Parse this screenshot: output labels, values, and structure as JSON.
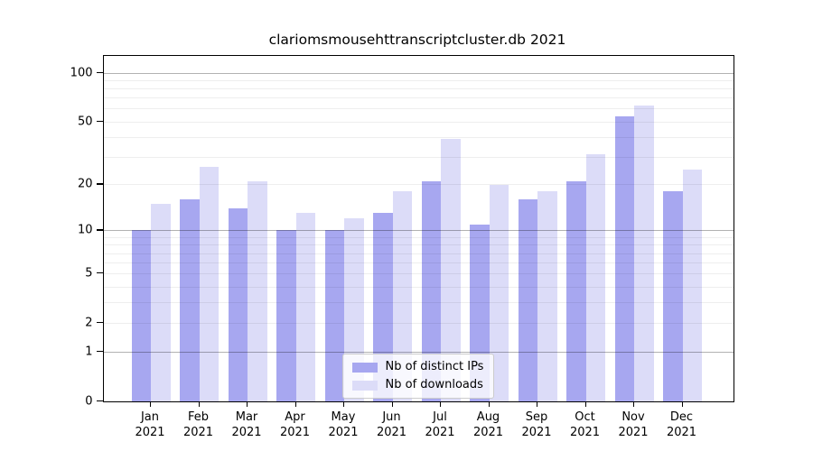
{
  "title": "clariomsmousehttranscriptcluster.db 2021",
  "chart_data": {
    "type": "bar",
    "title": "clariomsmousehttranscriptcluster.db 2021",
    "categories": [
      "Jan",
      "Feb",
      "Mar",
      "Apr",
      "May",
      "Jun",
      "Jul",
      "Aug",
      "Sep",
      "Oct",
      "Nov",
      "Dec"
    ],
    "x_tick_year": "2021",
    "series": [
      {
        "name": "Nb of distinct IPs",
        "color": "#a7a7f0",
        "values": [
          10,
          16,
          14,
          10,
          10,
          13,
          21,
          11,
          16,
          21,
          54,
          18
        ]
      },
      {
        "name": "Nb of downloads",
        "color": "#dcdcf8",
        "values": [
          15,
          26,
          21,
          13,
          12,
          18,
          39,
          20,
          18,
          31,
          63,
          25
        ]
      }
    ],
    "y_axis": {
      "scale": "log1p",
      "tick_labels": [
        "100",
        "50",
        "20",
        "10",
        "5",
        "2",
        "1",
        "0"
      ],
      "tick_values": [
        100,
        50,
        20,
        10,
        5,
        2,
        1,
        0
      ],
      "major_gridlines": [
        1,
        10,
        100
      ],
      "minor_gridlines": [
        2,
        3,
        4,
        5,
        6,
        7,
        8,
        9,
        20,
        30,
        40,
        50,
        60,
        70,
        80,
        90
      ],
      "ylim": [
        0,
        127
      ]
    },
    "grid": "on-top",
    "legend_position": "bottom-center",
    "colors": {
      "bar_distinct_ips": "#a7a7f0",
      "bar_downloads": "#dcdcf8",
      "axis": "#000000",
      "gridline_minor": "#ececec",
      "gridline_major": "#b2b2b2",
      "legend_border": "#cccccc",
      "background": "#ffffff"
    }
  }
}
